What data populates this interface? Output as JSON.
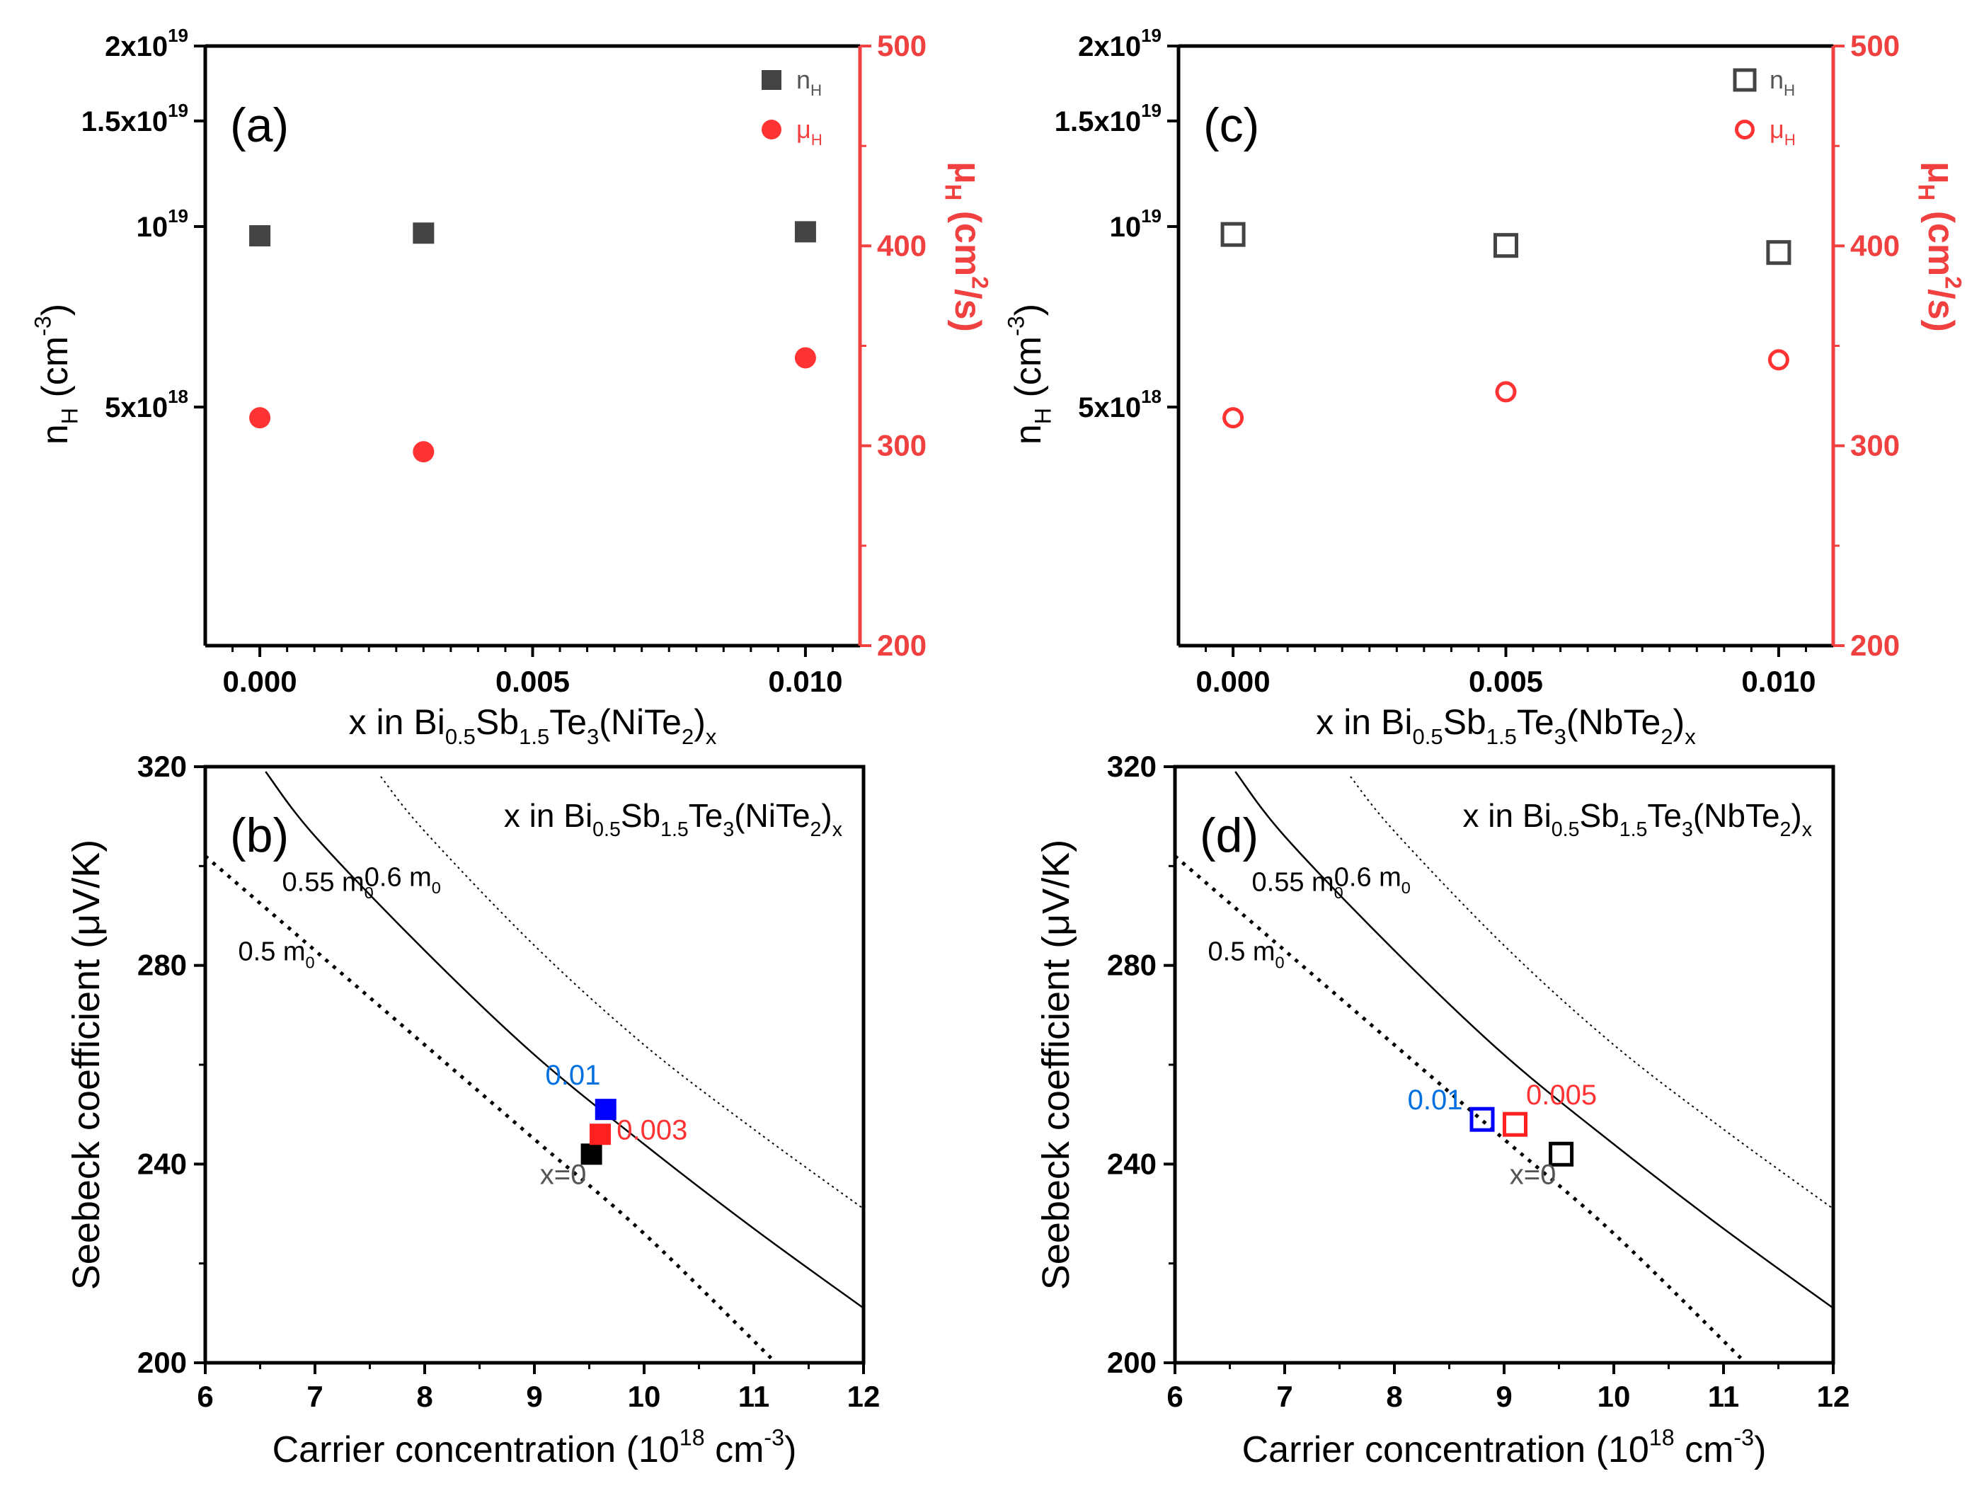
{
  "colors": {
    "axis": "#000000",
    "red": "#f04040",
    "blue": "#0064ff",
    "series_red": "#ff3333",
    "gray": "#444444"
  },
  "chart_data": [
    {
      "id": "a",
      "type": "scatter",
      "panel_label": "(a)",
      "xlabel": {
        "pre": "x in Bi",
        "s1": "0.5",
        "m1": "Sb",
        "s2": "1.5",
        "m2": "Te",
        "s3": "3",
        "m3": "(NiTe",
        "s4": "2",
        "m4": ")",
        "s5": "x"
      },
      "ylabel_left": {
        "base": "n",
        "sub": "H",
        "unit_pre": " (cm",
        "sup": "-3",
        "unit_post": ")"
      },
      "ylabel_right": {
        "base": "μ",
        "sub": "H",
        "unit_pre": " (cm",
        "sup": "2",
        "unit_post": "/s)"
      },
      "xlim": [
        -0.001,
        0.011
      ],
      "x_ticks": [
        {
          "v": 0,
          "label": "0.000"
        },
        {
          "v": 0.005,
          "label": "0.005"
        },
        {
          "v": 0.01,
          "label": "0.010"
        }
      ],
      "left_scale": "log",
      "left_ylim": [
        2000000000000000000,
        20000000000000000000
      ],
      "left_ticks": [
        {
          "v": 20000000000000000000,
          "m": "2x10",
          "e": "19"
        },
        {
          "v": 15000000000000000000,
          "m": "1.5x10",
          "e": "19"
        },
        {
          "v": 10000000000000000000,
          "m": "10",
          "e": "19"
        },
        {
          "v": 5000000000000000000,
          "m": "5x10",
          "e": "18"
        }
      ],
      "right_ylim": [
        200,
        500
      ],
      "right_ticks": [
        200,
        300,
        400,
        500
      ],
      "series": [
        {
          "name": "n_H",
          "legend_base": "n",
          "legend_sub": "H",
          "marker": "square",
          "filled": true,
          "axis": "left",
          "color": "#444444",
          "x": [
            0,
            0.003,
            0.01
          ],
          "y": [
            9650000000000000000,
            9750000000000000000,
            9800000000000000000
          ]
        },
        {
          "name": "μ_H",
          "legend_base": "μ",
          "legend_sub": "H",
          "marker": "circle",
          "filled": true,
          "axis": "right",
          "color": "#ff3333",
          "x": [
            0,
            0.003,
            0.01
          ],
          "y": [
            314,
            297,
            344
          ]
        }
      ]
    },
    {
      "id": "c",
      "type": "scatter",
      "panel_label": "(c)",
      "xlabel": {
        "pre": "x in Bi",
        "s1": "0.5",
        "m1": "Sb",
        "s2": "1.5",
        "m2": "Te",
        "s3": "3",
        "m3": "(NbTe",
        "s4": "2",
        "m4": ")",
        "s5": "x"
      },
      "ylabel_left": {
        "base": "n",
        "sub": "H",
        "unit_pre": " (cm",
        "sup": "-3",
        "unit_post": ")"
      },
      "ylabel_right": {
        "base": "μ",
        "sub": "H",
        "unit_pre": " (cm",
        "sup": "2",
        "unit_post": "/s)"
      },
      "xlim": [
        -0.001,
        0.011
      ],
      "x_ticks": [
        {
          "v": 0,
          "label": "0.000"
        },
        {
          "v": 0.005,
          "label": "0.005"
        },
        {
          "v": 0.01,
          "label": "0.010"
        }
      ],
      "left_scale": "log",
      "left_ylim": [
        2000000000000000000,
        20000000000000000000
      ],
      "left_ticks": [
        {
          "v": 20000000000000000000,
          "m": "2x10",
          "e": "19"
        },
        {
          "v": 15000000000000000000,
          "m": "1.5x10",
          "e": "19"
        },
        {
          "v": 10000000000000000000,
          "m": "10",
          "e": "19"
        },
        {
          "v": 5000000000000000000,
          "m": "5x10",
          "e": "18"
        }
      ],
      "right_ylim": [
        200,
        500
      ],
      "right_ticks": [
        200,
        300,
        400,
        500
      ],
      "series": [
        {
          "name": "n_H",
          "legend_base": "n",
          "legend_sub": "H",
          "marker": "square",
          "filled": false,
          "axis": "left",
          "color": "#444444",
          "x": [
            0,
            0.005,
            0.01
          ],
          "y": [
            9700000000000000000,
            9300000000000000000,
            9050000000000000000
          ]
        },
        {
          "name": "μ_H",
          "legend_base": "μ",
          "legend_sub": "H",
          "marker": "circle",
          "filled": false,
          "axis": "right",
          "color": "#ff3333",
          "x": [
            0,
            0.005,
            0.01
          ],
          "y": [
            314,
            327,
            343
          ]
        }
      ]
    },
    {
      "id": "b",
      "type": "line",
      "panel_label": "(b)",
      "title": {
        "pre": "x in Bi",
        "s1": "0.5",
        "m1": "Sb",
        "s2": "1.5",
        "m2": "Te",
        "s3": "3",
        "m3": "(NiTe",
        "s4": "2",
        "m4": ")",
        "s5": "x"
      },
      "xlabel": {
        "pre": "Carrier concentration (10",
        "sup": "18",
        "mid": " cm",
        "sup2": "-3",
        "post": ")"
      },
      "ylabel": "Seebeck coefficient (μV/K)",
      "xlim": [
        6,
        12
      ],
      "ylim": [
        200,
        320
      ],
      "x_ticks": [
        6,
        7,
        8,
        9,
        10,
        11,
        12
      ],
      "y_ticks": [
        200,
        240,
        280,
        320
      ],
      "curves": [
        {
          "name": "0.5 m0",
          "label_base": "0.5 m",
          "label_sub": "0",
          "style": "dotted",
          "x": [
            6,
            7,
            8,
            9,
            10,
            11.2
          ],
          "y": [
            302,
            283,
            264,
            245,
            226,
            200
          ],
          "label_at": [
            6.3,
            281
          ]
        },
        {
          "name": "0.55 m0",
          "label_base": "0.55 m",
          "label_sub": "0",
          "style": "solid",
          "x": [
            6.55,
            7,
            8,
            9,
            10,
            11,
            12
          ],
          "y": [
            319,
            306,
            283,
            262,
            244,
            227,
            211
          ],
          "label_at": [
            6.7,
            295
          ]
        },
        {
          "name": "0.6 m0",
          "label_base": "0.6 m",
          "label_sub": "0",
          "style": "thin-dotted",
          "x": [
            7.6,
            8,
            9,
            10,
            11,
            12
          ],
          "y": [
            318,
            307,
            284,
            264,
            247,
            231
          ],
          "label_at": [
            7.45,
            296
          ]
        }
      ],
      "points": [
        {
          "x": 9.52,
          "y": 242,
          "label": "x=0",
          "color": "#000000",
          "label_color": "#555555",
          "filled": true,
          "label_at": [
            9.05,
            236
          ]
        },
        {
          "x": 9.6,
          "y": 246,
          "label": "0.003",
          "color": "#ff2020",
          "label_color": "#ff3333",
          "filled": true,
          "label_at": [
            9.75,
            245
          ]
        },
        {
          "x": 9.65,
          "y": 251,
          "label": "0.01",
          "color": "#0000ff",
          "label_color": "#0070e0",
          "filled": true,
          "label_at": [
            9.1,
            256
          ]
        }
      ]
    },
    {
      "id": "d",
      "type": "line",
      "panel_label": "(d)",
      "title": {
        "pre": "x in Bi",
        "s1": "0.5",
        "m1": "Sb",
        "s2": "1.5",
        "m2": "Te",
        "s3": "3",
        "m3": "(NbTe",
        "s4": "2",
        "m4": ")",
        "s5": "x"
      },
      "xlabel": {
        "pre": "Carrier concentration (10",
        "sup": "18",
        "mid": " cm",
        "sup2": "-3",
        "post": ")"
      },
      "ylabel": "Seebeck coefficient (μV/K)",
      "xlim": [
        6,
        12
      ],
      "ylim": [
        200,
        320
      ],
      "x_ticks": [
        6,
        7,
        8,
        9,
        10,
        11,
        12
      ],
      "y_ticks": [
        200,
        240,
        280,
        320
      ],
      "curves": [
        {
          "name": "0.5 m0",
          "label_base": "0.5 m",
          "label_sub": "0",
          "style": "dotted",
          "x": [
            6,
            7,
            8,
            9,
            10,
            11.2
          ],
          "y": [
            302,
            283,
            264,
            245,
            226,
            200
          ],
          "label_at": [
            6.3,
            281
          ]
        },
        {
          "name": "0.55 m0",
          "label_base": "0.55 m",
          "label_sub": "0",
          "style": "solid",
          "x": [
            6.55,
            7,
            8,
            9,
            10,
            11,
            12
          ],
          "y": [
            319,
            306,
            283,
            262,
            244,
            227,
            211
          ],
          "label_at": [
            6.7,
            295
          ]
        },
        {
          "name": "0.6 m0",
          "label_base": "0.6 m",
          "label_sub": "0",
          "style": "thin-dotted",
          "x": [
            7.6,
            8,
            9,
            10,
            11,
            12
          ],
          "y": [
            318,
            307,
            284,
            264,
            247,
            231
          ],
          "label_at": [
            7.45,
            296
          ]
        }
      ],
      "points": [
        {
          "x": 9.52,
          "y": 242,
          "label": "x=0",
          "color": "#000000",
          "label_color": "#555555",
          "filled": false,
          "label_at": [
            9.05,
            236
          ]
        },
        {
          "x": 9.1,
          "y": 248,
          "label": "0.005",
          "color": "#ff2020",
          "label_color": "#ff3333",
          "filled": false,
          "label_at": [
            9.2,
            252
          ]
        },
        {
          "x": 8.8,
          "y": 249,
          "label": "0.01",
          "color": "#0000ff",
          "label_color": "#0070e0",
          "filled": false,
          "label_at": [
            8.12,
            251
          ]
        }
      ]
    }
  ]
}
